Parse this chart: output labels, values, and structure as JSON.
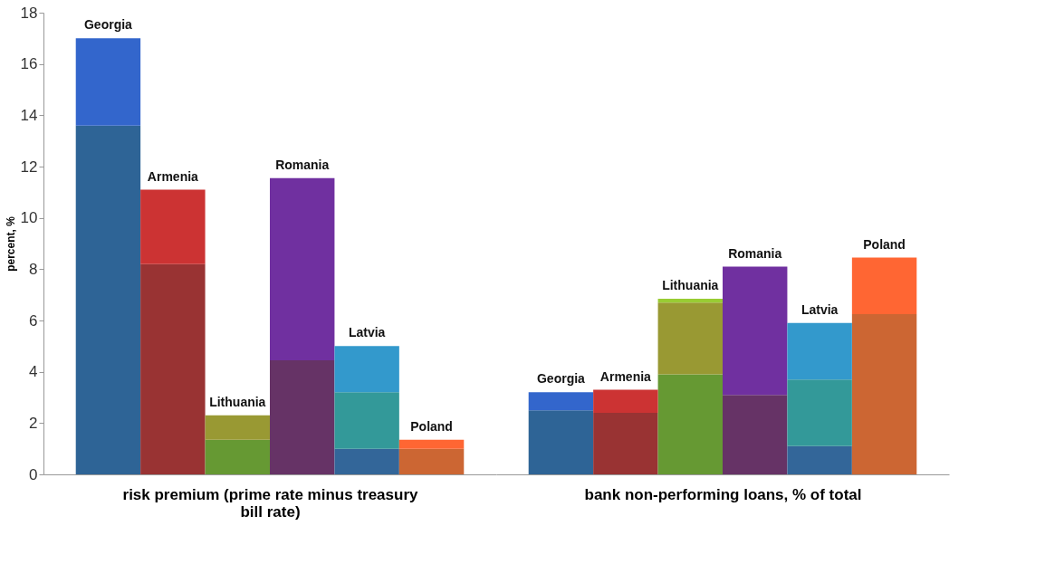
{
  "chart_data": [
    {
      "type": "bar",
      "stacked": true,
      "xlabel": "risk premium (prime rate minus treasury bill rate)",
      "ylabel": "percent, %",
      "categories": [
        "Georgia",
        "Armenia",
        "Lithuania",
        "Romania",
        "Latvia",
        "Poland"
      ],
      "ylim": [
        0,
        18
      ],
      "yticks": [
        0,
        2,
        4,
        6,
        8,
        10,
        12,
        14,
        16,
        18
      ],
      "grid": false,
      "series": [
        {
          "colors": [
            "#2e6496",
            "#993333",
            "#669933",
            "#663366",
            "#336699",
            "#cc6633"
          ],
          "values": [
            13.6,
            8.2,
            1.35,
            4.45,
            1.0,
            1.0
          ]
        },
        {
          "colors": [
            "#3366cc",
            "#cc3333",
            "#999933",
            "#7030a0",
            "#339999",
            "#ff6633"
          ],
          "values": [
            3.4,
            2.9,
            0.95,
            7.1,
            2.2,
            0.35
          ]
        },
        {
          "colors": [
            null,
            null,
            null,
            null,
            "#3399cc",
            null
          ],
          "values": [
            null,
            null,
            null,
            null,
            1.8,
            null
          ]
        }
      ]
    },
    {
      "type": "bar",
      "stacked": true,
      "xlabel": "bank non-performing loans, % of total",
      "categories": [
        "Georgia",
        "Armenia",
        "Lithuania",
        "Romania",
        "Latvia",
        "Poland"
      ],
      "ylim": [
        0,
        18
      ],
      "yticks": [
        0,
        2,
        4,
        6,
        8,
        10,
        12,
        14,
        16,
        18
      ],
      "grid": false,
      "tick_labels": "x",
      "series": [
        {
          "colors": [
            "#2e6496",
            "#993333",
            "#669933",
            "#663366",
            "#336699",
            "#cc6633"
          ],
          "values": [
            2.5,
            2.4,
            3.9,
            3.1,
            1.1,
            6.25
          ]
        },
        {
          "colors": [
            "#3366cc",
            "#cc3333",
            "#999933",
            "#7030a0",
            "#339999",
            "#ff6633"
          ],
          "values": [
            0.7,
            0.9,
            2.8,
            5.0,
            2.6,
            2.2
          ]
        },
        {
          "colors": [
            null,
            null,
            "#99cc33",
            null,
            "#3399cc",
            null
          ],
          "values": [
            null,
            null,
            0.15,
            null,
            2.2,
            null
          ]
        }
      ]
    }
  ]
}
